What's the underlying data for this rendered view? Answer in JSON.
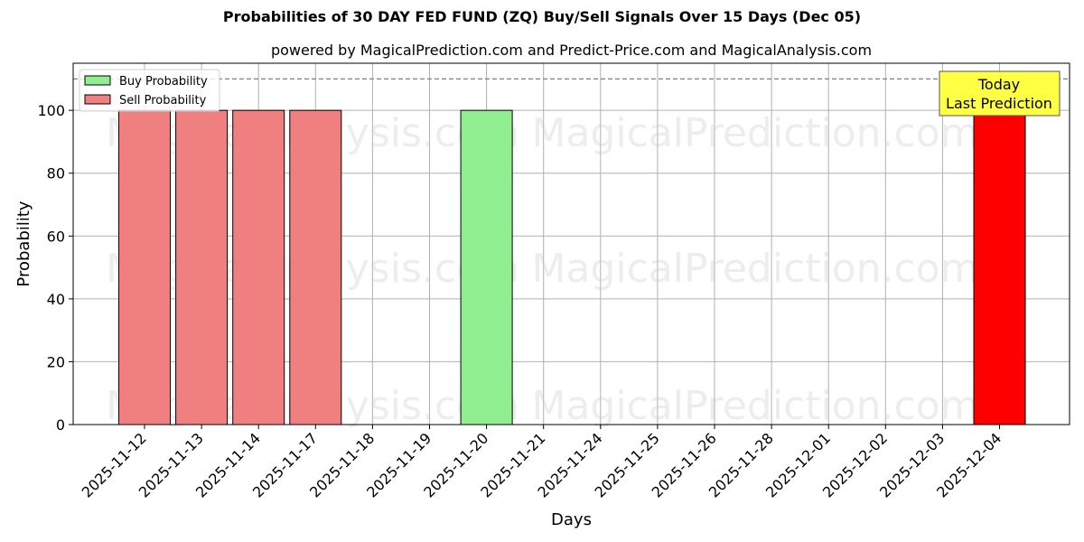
{
  "chart_data": {
    "type": "bar",
    "title": "Probabilities of 30 DAY FED FUND (ZQ) Buy/Sell Signals Over 15 Days (Dec 05)",
    "subtitle": "powered by MagicalPrediction.com and Predict-Price.com and MagicalAnalysis.com",
    "xlabel": "Days",
    "ylabel": "Probability",
    "ylim": [
      0,
      115
    ],
    "yticks": [
      0,
      20,
      40,
      60,
      80,
      100
    ],
    "grid": true,
    "legend_position": "upper left",
    "reference_line": {
      "y": 110,
      "style": "dashed",
      "color": "#808080"
    },
    "categories": [
      "2025-11-12",
      "2025-11-13",
      "2025-11-14",
      "2025-11-17",
      "2025-11-18",
      "2025-11-19",
      "2025-11-20",
      "2025-11-21",
      "2025-11-24",
      "2025-11-25",
      "2025-11-26",
      "2025-11-28",
      "2025-12-01",
      "2025-12-02",
      "2025-12-03",
      "2025-12-04"
    ],
    "series": [
      {
        "name": "Buy Probability",
        "color": "#90ee90",
        "values": [
          0,
          0,
          0,
          0,
          0,
          0,
          100,
          0,
          0,
          0,
          0,
          0,
          0,
          0,
          0,
          0
        ]
      },
      {
        "name": "Sell Probability",
        "color": "#f08080",
        "values": [
          100,
          100,
          100,
          100,
          0,
          0,
          0,
          0,
          0,
          0,
          0,
          0,
          0,
          0,
          0,
          100
        ]
      }
    ],
    "highlight": {
      "category": "2025-12-04",
      "color": "#ff0000",
      "annotation": [
        "Today",
        "Last Prediction"
      ],
      "annotation_bg": "#ffff44"
    },
    "watermarks": [
      "MagicalAnalysis.com",
      "MagicalPrediction.com"
    ]
  }
}
